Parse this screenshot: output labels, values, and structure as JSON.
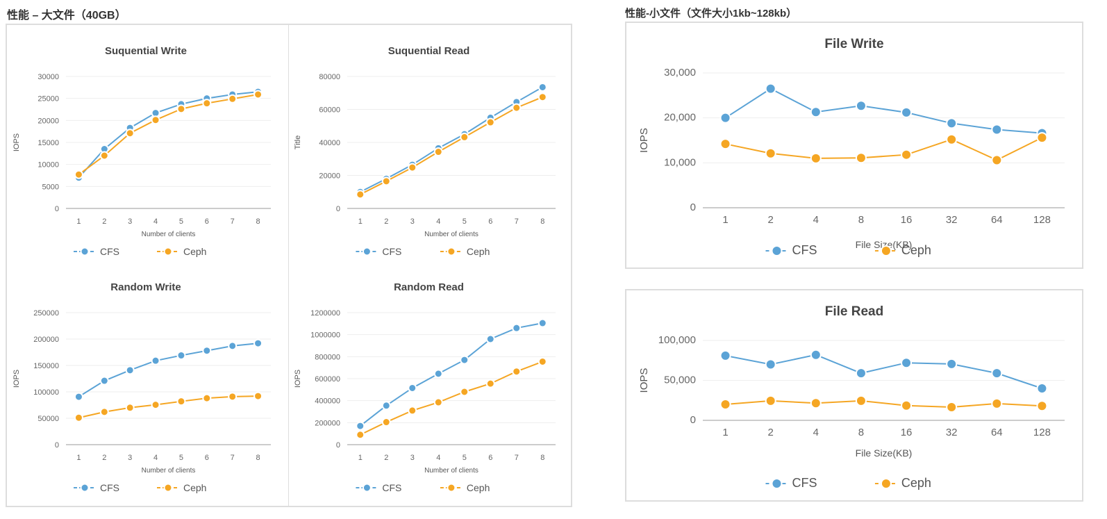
{
  "left_title": "性能 – 大文件（40GB）",
  "right_title": "性能-小文件（文件大小1kb~128kb）",
  "colors": {
    "CFS": "#5ba3d6",
    "Ceph": "#f5a623"
  },
  "chart_data": [
    {
      "type": "line",
      "title": "Suquential Write",
      "xlabel": "Number of clients",
      "ylabel": "IOPS",
      "categories": [
        "1",
        "2",
        "3",
        "4",
        "5",
        "6",
        "7",
        "8"
      ],
      "ylim": [
        0,
        30000
      ],
      "yticks": [
        "0",
        "5000",
        "10000",
        "15000",
        "20000",
        "25000",
        "30000"
      ],
      "legend": "bottom",
      "grid": true,
      "series": [
        {
          "name": "CFS",
          "values": [
            7000,
            13500,
            18300,
            21700,
            23700,
            25000,
            25900,
            26500
          ]
        },
        {
          "name": "Ceph",
          "values": [
            7700,
            12000,
            17100,
            20100,
            22600,
            23900,
            24900,
            25900
          ]
        }
      ]
    },
    {
      "type": "line",
      "title": "Suquential Read",
      "xlabel": "Number of clients",
      "ylabel": "Title",
      "categories": [
        "1",
        "2",
        "3",
        "4",
        "5",
        "6",
        "7",
        "8"
      ],
      "ylim": [
        0,
        80000
      ],
      "yticks": [
        "0",
        "20000",
        "40000",
        "60000",
        "80000"
      ],
      "legend": "bottom",
      "grid": true,
      "series": [
        {
          "name": "CFS",
          "values": [
            10000,
            18000,
            26500,
            36500,
            45000,
            55000,
            64500,
            73500
          ]
        },
        {
          "name": "Ceph",
          "values": [
            8500,
            16500,
            24800,
            34300,
            43200,
            52200,
            61000,
            67500
          ]
        }
      ]
    },
    {
      "type": "line",
      "title": "Random Write",
      "xlabel": "Number of clients",
      "ylabel": "IOPS",
      "categories": [
        "1",
        "2",
        "3",
        "4",
        "5",
        "6",
        "7",
        "8"
      ],
      "ylim": [
        0,
        250000
      ],
      "yticks": [
        "0",
        "50000",
        "100000",
        "150000",
        "200000",
        "250000"
      ],
      "legend": "bottom",
      "grid": true,
      "series": [
        {
          "name": "CFS",
          "values": [
            90700,
            121000,
            141000,
            159000,
            169000,
            178000,
            187000,
            192000
          ]
        },
        {
          "name": "Ceph",
          "values": [
            51000,
            62000,
            70000,
            75500,
            82000,
            88000,
            91000,
            92000
          ]
        }
      ]
    },
    {
      "type": "line",
      "title": "Random Read",
      "xlabel": "Number of clients",
      "ylabel": "IOPS",
      "categories": [
        "1",
        "2",
        "3",
        "4",
        "5",
        "6",
        "7",
        "8"
      ],
      "ylim": [
        0,
        1200000
      ],
      "yticks": [
        "0",
        "200000",
        "400000",
        "600000",
        "800000",
        "1000000",
        "1200000"
      ],
      "legend": "bottom",
      "grid": true,
      "series": [
        {
          "name": "CFS",
          "values": [
            170000,
            355000,
            515000,
            645000,
            770000,
            960000,
            1060000,
            1105000
          ]
        },
        {
          "name": "Ceph",
          "values": [
            90000,
            205000,
            310000,
            385000,
            480000,
            555000,
            665000,
            755000
          ]
        }
      ]
    },
    {
      "type": "line",
      "title": "File Write",
      "xlabel": "File Size(KB)",
      "ylabel": "IOPS",
      "categories": [
        "1",
        "2",
        "4",
        "8",
        "16",
        "32",
        "64",
        "128"
      ],
      "ylim": [
        0,
        30000
      ],
      "yticks": [
        "0",
        "10,000",
        "20,000",
        "30,000"
      ],
      "legend": "bottom",
      "grid": true,
      "series": [
        {
          "name": "CFS",
          "values": [
            20000,
            26500,
            21300,
            22700,
            21200,
            18800,
            17400,
            16600
          ]
        },
        {
          "name": "Ceph",
          "values": [
            14200,
            12100,
            11000,
            11100,
            11800,
            15200,
            10600,
            15600
          ]
        }
      ]
    },
    {
      "type": "line",
      "title": "File Read",
      "xlabel": "File Size(KB)",
      "ylabel": "IOPS",
      "categories": [
        "1",
        "2",
        "4",
        "8",
        "16",
        "32",
        "64",
        "128"
      ],
      "ylim": [
        0,
        100000
      ],
      "yticks": [
        "0",
        "50,000",
        "100,000"
      ],
      "legend": "bottom",
      "grid": true,
      "series": [
        {
          "name": "CFS",
          "values": [
            81000,
            70000,
            82000,
            59000,
            72000,
            70500,
            59000,
            40000
          ]
        },
        {
          "name": "Ceph",
          "values": [
            20000,
            24500,
            21500,
            24500,
            18500,
            16500,
            21000,
            18000
          ]
        }
      ]
    }
  ]
}
